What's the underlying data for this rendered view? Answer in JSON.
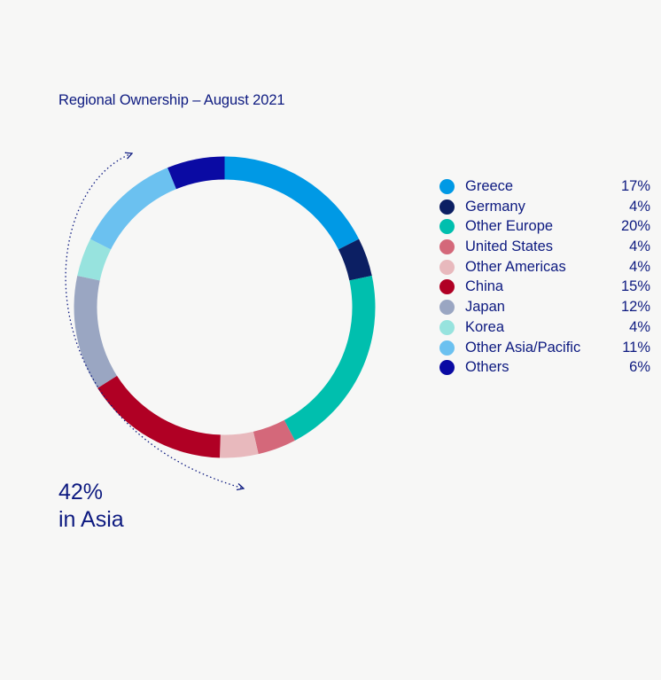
{
  "chart_data": {
    "type": "pie",
    "title": "Regional Ownership – August 2021",
    "categories": [
      "Greece",
      "Germany",
      "Other Europe",
      "United States",
      "Other Americas",
      "China",
      "Japan",
      "Korea",
      "Other Asia/Pacific",
      "Others"
    ],
    "values": [
      17,
      4,
      20,
      4,
      4,
      15,
      12,
      4,
      11,
      6
    ],
    "value_labels": [
      "17%",
      "4%",
      "20%",
      "4%",
      "4%",
      "15%",
      "12%",
      "4%",
      "11%",
      "6%"
    ],
    "colors": [
      "#0099e5",
      "#0c1f63",
      "#00bfae",
      "#d4687a",
      "#e8b9bd",
      "#b00024",
      "#9aa6c2",
      "#97e3de",
      "#6bc1f0",
      "#0a0aa3"
    ],
    "legend_position": "right",
    "annotation": {
      "value": "42%",
      "label": "in Asia"
    }
  }
}
